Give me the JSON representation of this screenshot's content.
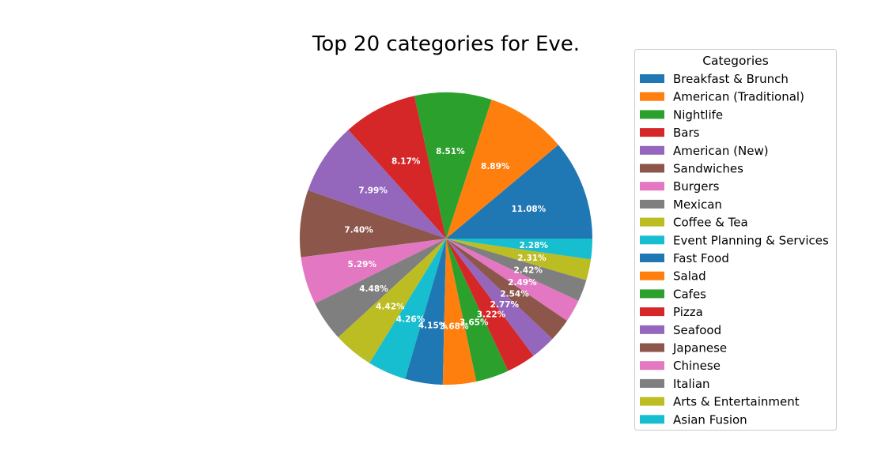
{
  "chart_data": {
    "type": "pie",
    "title": "Top 20 categories for Eve.",
    "legend_title": "Categories",
    "legend_position": "right",
    "start_angle_deg": 0,
    "direction": "counterclockwise",
    "slices": [
      {
        "label": "Breakfast & Brunch",
        "value": 11.08,
        "pct_text": "11.08%",
        "color": "#1f77b4"
      },
      {
        "label": "American (Traditional)",
        "value": 8.89,
        "pct_text": "8.89%",
        "color": "#ff7f0e"
      },
      {
        "label": "Nightlife",
        "value": 8.51,
        "pct_text": "8.51%",
        "color": "#2ca02c"
      },
      {
        "label": "Bars",
        "value": 8.17,
        "pct_text": "8.17%",
        "color": "#d62728"
      },
      {
        "label": "American (New)",
        "value": 7.99,
        "pct_text": "7.99%",
        "color": "#9467bd"
      },
      {
        "label": "Sandwiches",
        "value": 7.4,
        "pct_text": "7.40%",
        "color": "#8c564b"
      },
      {
        "label": "Burgers",
        "value": 5.29,
        "pct_text": "5.29%",
        "color": "#e377c2"
      },
      {
        "label": "Mexican",
        "value": 4.48,
        "pct_text": "4.48%",
        "color": "#7f7f7f"
      },
      {
        "label": "Coffee & Tea",
        "value": 4.42,
        "pct_text": "4.42%",
        "color": "#bcbd22"
      },
      {
        "label": "Event Planning & Services",
        "value": 4.26,
        "pct_text": "4.26%",
        "color": "#17becf"
      },
      {
        "label": "Fast Food",
        "value": 4.15,
        "pct_text": "4.15%",
        "color": "#1f77b4"
      },
      {
        "label": "Salad",
        "value": 3.68,
        "pct_text": "3.68%",
        "color": "#ff7f0e"
      },
      {
        "label": "Cafes",
        "value": 3.65,
        "pct_text": "3.65%",
        "color": "#2ca02c"
      },
      {
        "label": "Pizza",
        "value": 3.22,
        "pct_text": "3.22%",
        "color": "#d62728"
      },
      {
        "label": "Seafood",
        "value": 2.77,
        "pct_text": "2.77%",
        "color": "#9467bd"
      },
      {
        "label": "Japanese",
        "value": 2.54,
        "pct_text": "2.54%",
        "color": "#8c564b"
      },
      {
        "label": "Chinese",
        "value": 2.49,
        "pct_text": "2.49%",
        "color": "#e377c2"
      },
      {
        "label": "Italian",
        "value": 2.42,
        "pct_text": "2.42%",
        "color": "#7f7f7f"
      },
      {
        "label": "Arts & Entertainment",
        "value": 2.31,
        "pct_text": "2.31%",
        "color": "#bcbd22"
      },
      {
        "label": "Asian Fusion",
        "value": 2.28,
        "pct_text": "2.28%",
        "color": "#17becf"
      }
    ]
  }
}
